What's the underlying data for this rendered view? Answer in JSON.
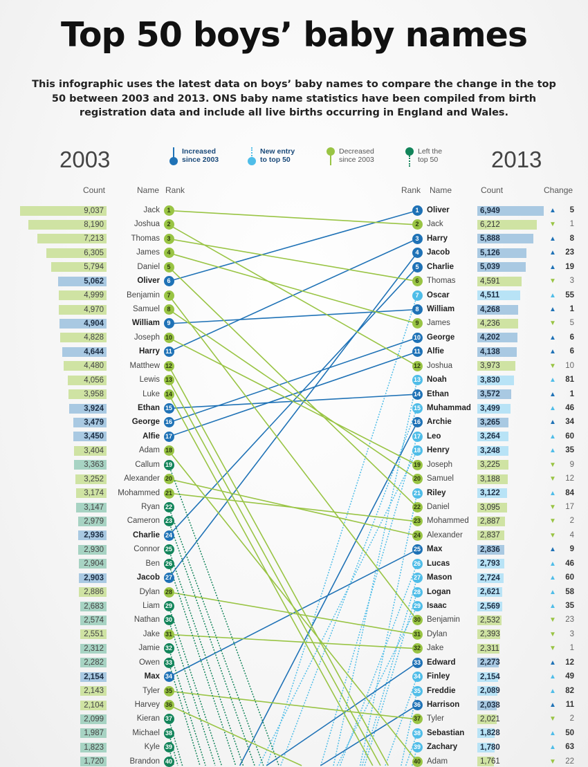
{
  "title": "Top 50 boys’ baby names",
  "subtitle": "This infographic uses the latest data on boys’ baby names to compare the change in the top 50 between 2003 and 2013. ONS baby name statistics have been compiled from birth registration data and include all live births occurring in England and Wales.",
  "colors": {
    "increased": "#1f72b6",
    "new_entry": "#4fbde8",
    "decreased": "#99c444",
    "left_top_50": "#12845a",
    "bar_increased": "#a9c9e2",
    "bar_new_entry": "#b8e3f6",
    "bar_decreased": "#cfe3a3",
    "bar_left_top_50": "#a7d3c3"
  },
  "legend": {
    "increased": "Increased since 2003",
    "new_entry": "New entry to top 50",
    "decreased": "Decreased since 2003",
    "left_top_50": "Left the top 50"
  },
  "chart_data": {
    "type": "slope",
    "left_year": "2003",
    "right_year": "2013",
    "left_headers": {
      "count": "Count",
      "name": "Name",
      "rank": "Rank"
    },
    "right_headers": {
      "rank": "Rank",
      "name": "Name",
      "count": "Count",
      "change": "Change"
    },
    "left": [
      {
        "rank": 1,
        "name": "Jack",
        "count": "9,037",
        "status": "decreased"
      },
      {
        "rank": 2,
        "name": "Joshua",
        "count": "8,190",
        "status": "decreased"
      },
      {
        "rank": 3,
        "name": "Thomas",
        "count": "7,213",
        "status": "decreased"
      },
      {
        "rank": 4,
        "name": "James",
        "count": "6,305",
        "status": "decreased"
      },
      {
        "rank": 5,
        "name": "Daniel",
        "count": "5,794",
        "status": "decreased"
      },
      {
        "rank": 6,
        "name": "Oliver",
        "count": "5,062",
        "status": "increased"
      },
      {
        "rank": 7,
        "name": "Benjamin",
        "count": "4,999",
        "status": "decreased"
      },
      {
        "rank": 8,
        "name": "Samuel",
        "count": "4,970",
        "status": "decreased"
      },
      {
        "rank": 9,
        "name": "William",
        "count": "4,904",
        "status": "increased"
      },
      {
        "rank": 10,
        "name": "Joseph",
        "count": "4,828",
        "status": "decreased"
      },
      {
        "rank": 11,
        "name": "Harry",
        "count": "4,644",
        "status": "increased"
      },
      {
        "rank": 12,
        "name": "Matthew",
        "count": "4,480",
        "status": "decreased"
      },
      {
        "rank": 13,
        "name": "Lewis",
        "count": "4,056",
        "status": "decreased"
      },
      {
        "rank": 14,
        "name": "Luke",
        "count": "3,958",
        "status": "decreased"
      },
      {
        "rank": 15,
        "name": "Ethan",
        "count": "3,924",
        "status": "increased"
      },
      {
        "rank": 16,
        "name": "George",
        "count": "3,479",
        "status": "increased"
      },
      {
        "rank": 17,
        "name": "Alfie",
        "count": "3,450",
        "status": "increased"
      },
      {
        "rank": 18,
        "name": "Adam",
        "count": "3,404",
        "status": "decreased"
      },
      {
        "rank": 19,
        "name": "Callum",
        "count": "3,363",
        "status": "left_top_50"
      },
      {
        "rank": 20,
        "name": "Alexander",
        "count": "3,252",
        "status": "decreased"
      },
      {
        "rank": 21,
        "name": "Mohammed",
        "count": "3,174",
        "status": "decreased"
      },
      {
        "rank": 22,
        "name": "Ryan",
        "count": "3,147",
        "status": "left_top_50"
      },
      {
        "rank": 23,
        "name": "Cameron",
        "count": "2,979",
        "status": "left_top_50"
      },
      {
        "rank": 24,
        "name": "Charlie",
        "count": "2,936",
        "status": "increased"
      },
      {
        "rank": 25,
        "name": "Connor",
        "count": "2,930",
        "status": "left_top_50"
      },
      {
        "rank": 26,
        "name": "Ben",
        "count": "2,904",
        "status": "left_top_50"
      },
      {
        "rank": 27,
        "name": "Jacob",
        "count": "2,903",
        "status": "increased"
      },
      {
        "rank": 28,
        "name": "Dylan",
        "count": "2,886",
        "status": "decreased"
      },
      {
        "rank": 29,
        "name": "Liam",
        "count": "2,683",
        "status": "left_top_50"
      },
      {
        "rank": 30,
        "name": "Nathan",
        "count": "2,574",
        "status": "left_top_50"
      },
      {
        "rank": 31,
        "name": "Jake",
        "count": "2,551",
        "status": "decreased"
      },
      {
        "rank": 32,
        "name": "Jamie",
        "count": "2,312",
        "status": "left_top_50"
      },
      {
        "rank": 33,
        "name": "Owen",
        "count": "2,282",
        "status": "left_top_50"
      },
      {
        "rank": 34,
        "name": "Max",
        "count": "2,154",
        "status": "increased"
      },
      {
        "rank": 35,
        "name": "Tyler",
        "count": "2,143",
        "status": "decreased"
      },
      {
        "rank": 36,
        "name": "Harvey",
        "count": "2,104",
        "status": "decreased"
      },
      {
        "rank": 37,
        "name": "Kieran",
        "count": "2,099",
        "status": "left_top_50"
      },
      {
        "rank": 38,
        "name": "Michael",
        "count": "1,987",
        "status": "left_top_50"
      },
      {
        "rank": 39,
        "name": "Kyle",
        "count": "1,823",
        "status": "left_top_50"
      },
      {
        "rank": 40,
        "name": "Brandon",
        "count": "1,720",
        "status": "left_top_50"
      }
    ],
    "right": [
      {
        "rank": 1,
        "name": "Oliver",
        "count": "6,949",
        "status": "increased",
        "direction": "up",
        "change": 5
      },
      {
        "rank": 2,
        "name": "Jack",
        "count": "6,212",
        "status": "decreased",
        "direction": "down",
        "change": 1
      },
      {
        "rank": 3,
        "name": "Harry",
        "count": "5,888",
        "status": "increased",
        "direction": "up",
        "change": 8
      },
      {
        "rank": 4,
        "name": "Jacob",
        "count": "5,126",
        "status": "increased",
        "direction": "up",
        "change": 23
      },
      {
        "rank": 5,
        "name": "Charlie",
        "count": "5,039",
        "status": "increased",
        "direction": "up",
        "change": 19
      },
      {
        "rank": 6,
        "name": "Thomas",
        "count": "4,591",
        "status": "decreased",
        "direction": "down",
        "change": 3
      },
      {
        "rank": 7,
        "name": "Oscar",
        "count": "4,511",
        "status": "new_entry",
        "direction": "up",
        "change": 55
      },
      {
        "rank": 8,
        "name": "William",
        "count": "4,268",
        "status": "increased",
        "direction": "up",
        "change": 1
      },
      {
        "rank": 9,
        "name": "James",
        "count": "4,236",
        "status": "decreased",
        "direction": "down",
        "change": 5
      },
      {
        "rank": 10,
        "name": "George",
        "count": "4,202",
        "status": "increased",
        "direction": "up",
        "change": 6
      },
      {
        "rank": 11,
        "name": "Alfie",
        "count": "4,138",
        "status": "increased",
        "direction": "up",
        "change": 6
      },
      {
        "rank": 12,
        "name": "Joshua",
        "count": "3,973",
        "status": "decreased",
        "direction": "down",
        "change": 10
      },
      {
        "rank": 13,
        "name": "Noah",
        "count": "3,830",
        "status": "new_entry",
        "direction": "up",
        "change": 81
      },
      {
        "rank": 14,
        "name": "Ethan",
        "count": "3,572",
        "status": "increased",
        "direction": "up",
        "change": 1
      },
      {
        "rank": 15,
        "name": "Muhammad",
        "count": "3,499",
        "status": "new_entry",
        "direction": "up",
        "change": 46
      },
      {
        "rank": 16,
        "name": "Archie",
        "count": "3,265",
        "status": "increased",
        "direction": "up",
        "change": 34
      },
      {
        "rank": 17,
        "name": "Leo",
        "count": "3,264",
        "status": "new_entry",
        "direction": "up",
        "change": 60
      },
      {
        "rank": 18,
        "name": "Henry",
        "count": "3,248",
        "status": "new_entry",
        "direction": "up",
        "change": 35
      },
      {
        "rank": 19,
        "name": "Joseph",
        "count": "3,225",
        "status": "decreased",
        "direction": "down",
        "change": 9
      },
      {
        "rank": 20,
        "name": "Samuel",
        "count": "3,188",
        "status": "decreased",
        "direction": "down",
        "change": 12
      },
      {
        "rank": 21,
        "name": "Riley",
        "count": "3,122",
        "status": "new_entry",
        "direction": "up",
        "change": 84
      },
      {
        "rank": 22,
        "name": "Daniel",
        "count": "3,095",
        "status": "decreased",
        "direction": "down",
        "change": 17
      },
      {
        "rank": 23,
        "name": "Mohammed",
        "count": "2,887",
        "status": "decreased",
        "direction": "down",
        "change": 2
      },
      {
        "rank": 24,
        "name": "Alexander",
        "count": "2,837",
        "status": "decreased",
        "direction": "down",
        "change": 4
      },
      {
        "rank": 25,
        "name": "Max",
        "count": "2,836",
        "status": "increased",
        "direction": "up",
        "change": 9
      },
      {
        "rank": 26,
        "name": "Lucas",
        "count": "2,793",
        "status": "new_entry",
        "direction": "up",
        "change": 46
      },
      {
        "rank": 27,
        "name": "Mason",
        "count": "2,724",
        "status": "new_entry",
        "direction": "up",
        "change": 60
      },
      {
        "rank": 28,
        "name": "Logan",
        "count": "2,621",
        "status": "new_entry",
        "direction": "up",
        "change": 58
      },
      {
        "rank": 29,
        "name": "Isaac",
        "count": "2,569",
        "status": "new_entry",
        "direction": "up",
        "change": 35
      },
      {
        "rank": 30,
        "name": "Benjamin",
        "count": "2,532",
        "status": "decreased",
        "direction": "down",
        "change": 23
      },
      {
        "rank": 31,
        "name": "Dylan",
        "count": "2,393",
        "status": "decreased",
        "direction": "down",
        "change": 3
      },
      {
        "rank": 32,
        "name": "Jake",
        "count": "2,311",
        "status": "decreased",
        "direction": "down",
        "change": 1
      },
      {
        "rank": 33,
        "name": "Edward",
        "count": "2,273",
        "status": "increased",
        "direction": "up",
        "change": 12
      },
      {
        "rank": 34,
        "name": "Finley",
        "count": "2,154",
        "status": "new_entry",
        "direction": "up",
        "change": 49
      },
      {
        "rank": 35,
        "name": "Freddie",
        "count": "2,089",
        "status": "new_entry",
        "direction": "up",
        "change": 82
      },
      {
        "rank": 36,
        "name": "Harrison",
        "count": "2,038",
        "status": "increased",
        "direction": "up",
        "change": 11
      },
      {
        "rank": 37,
        "name": "Tyler",
        "count": "2,021",
        "status": "decreased",
        "direction": "down",
        "change": 2
      },
      {
        "rank": 38,
        "name": "Sebastian",
        "count": "1,828",
        "status": "new_entry",
        "direction": "up",
        "change": 50
      },
      {
        "rank": 39,
        "name": "Zachary",
        "count": "1,780",
        "status": "new_entry",
        "direction": "up",
        "change": 63
      },
      {
        "rank": 40,
        "name": "Adam",
        "count": "1,761",
        "status": "decreased",
        "direction": "down",
        "change": 22
      }
    ]
  }
}
